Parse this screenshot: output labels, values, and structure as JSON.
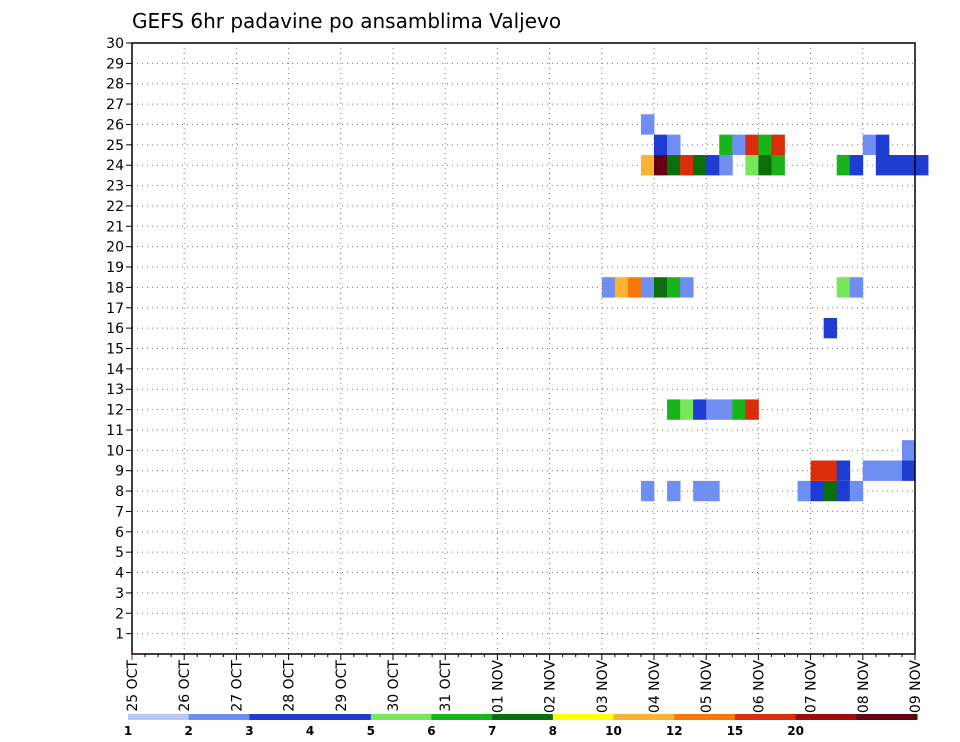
{
  "chart_data": {
    "type": "heatmap",
    "title": "GEFS 6hr padavine po ansamblima Valjevo",
    "y_range": [
      0,
      30
    ],
    "y_ticks": [
      1,
      2,
      3,
      4,
      5,
      6,
      7,
      8,
      9,
      10,
      11,
      12,
      13,
      14,
      15,
      16,
      17,
      18,
      19,
      20,
      21,
      22,
      23,
      24,
      25,
      26,
      27,
      28,
      29,
      30
    ],
    "x_ticks": [
      "25 OCT",
      "26 OCT",
      "27 OCT",
      "28 OCT",
      "29 OCT",
      "30 OCT",
      "31 OCT",
      "01 NOV",
      "02 NOV",
      "03 NOV",
      "04 NOV",
      "05 NOV",
      "06 NOV",
      "07 NOV",
      "08 NOV",
      "09 NOV"
    ],
    "x_unit": "6-hour steps",
    "grid": "dotted",
    "legend": {
      "position": "bottom",
      "labels": [
        "1",
        "2",
        "3",
        "4",
        "5",
        "6",
        "7",
        "8",
        "10",
        "12",
        "15",
        "20"
      ],
      "colors": [
        "#b4c6fa",
        "#6e8ef2",
        "#1e3cd2",
        "#1e3cd2",
        "#78e65a",
        "#19b419",
        "#0a6e0a",
        "#ffff00",
        "#fab432",
        "#fa780a",
        "#dc2d0a",
        "#a00a0a",
        "#640014"
      ]
    },
    "cells": [
      {
        "member": 8,
        "step": 39,
        "level": 1
      },
      {
        "member": 8,
        "step": 41,
        "level": 1
      },
      {
        "member": 8,
        "step": 43,
        "level": 1
      },
      {
        "member": 8,
        "step": 44,
        "level": 1
      },
      {
        "member": 8,
        "step": 51,
        "level": 1
      },
      {
        "member": 8,
        "step": 52,
        "level": 2
      },
      {
        "member": 8,
        "step": 53,
        "level": 6
      },
      {
        "member": 8,
        "step": 54,
        "level": 2
      },
      {
        "member": 8,
        "step": 55,
        "level": 1
      },
      {
        "member": 9,
        "step": 52,
        "level": 10
      },
      {
        "member": 9,
        "step": 53,
        "level": 10
      },
      {
        "member": 9,
        "step": 54,
        "level": 3
      },
      {
        "member": 9,
        "step": 56,
        "level": 1
      },
      {
        "member": 9,
        "step": 57,
        "level": 1
      },
      {
        "member": 9,
        "step": 58,
        "level": 1
      },
      {
        "member": 9,
        "step": 59,
        "level": 3
      },
      {
        "member": 10,
        "step": 59,
        "level": 1
      },
      {
        "member": 12,
        "step": 41,
        "level": 5
      },
      {
        "member": 12,
        "step": 42,
        "level": 4
      },
      {
        "member": 12,
        "step": 43,
        "level": 2
      },
      {
        "member": 12,
        "step": 44,
        "level": 1
      },
      {
        "member": 12,
        "step": 45,
        "level": 1
      },
      {
        "member": 12,
        "step": 46,
        "level": 5
      },
      {
        "member": 12,
        "step": 47,
        "level": 10
      },
      {
        "member": 16,
        "step": 53,
        "level": 2
      },
      {
        "member": 18,
        "step": 36,
        "level": 1
      },
      {
        "member": 18,
        "step": 37,
        "level": 8
      },
      {
        "member": 18,
        "step": 38,
        "level": 9
      },
      {
        "member": 18,
        "step": 39,
        "level": 1
      },
      {
        "member": 18,
        "step": 40,
        "level": 6
      },
      {
        "member": 18,
        "step": 41,
        "level": 5
      },
      {
        "member": 18,
        "step": 42,
        "level": 1
      },
      {
        "member": 18,
        "step": 54,
        "level": 4
      },
      {
        "member": 18,
        "step": 55,
        "level": 1
      },
      {
        "member": 24,
        "step": 39,
        "level": 8
      },
      {
        "member": 24,
        "step": 40,
        "level": 12
      },
      {
        "member": 24,
        "step": 41,
        "level": 6
      },
      {
        "member": 24,
        "step": 42,
        "level": 10
      },
      {
        "member": 24,
        "step": 43,
        "level": 6
      },
      {
        "member": 24,
        "step": 44,
        "level": 3
      },
      {
        "member": 24,
        "step": 45,
        "level": 1
      },
      {
        "member": 24,
        "step": 47,
        "level": 4
      },
      {
        "member": 24,
        "step": 48,
        "level": 6
      },
      {
        "member": 24,
        "step": 49,
        "level": 5
      },
      {
        "member": 24,
        "step": 54,
        "level": 5
      },
      {
        "member": 24,
        "step": 55,
        "level": 2
      },
      {
        "member": 24,
        "step": 57,
        "level": 2
      },
      {
        "member": 24,
        "step": 58,
        "level": 2
      },
      {
        "member": 24,
        "step": 59,
        "level": 2
      },
      {
        "member": 24,
        "step": 60,
        "level": 2
      },
      {
        "member": 25,
        "step": 40,
        "level": 2
      },
      {
        "member": 25,
        "step": 41,
        "level": 1
      },
      {
        "member": 25,
        "step": 45,
        "level": 5
      },
      {
        "member": 25,
        "step": 46,
        "level": 1
      },
      {
        "member": 25,
        "step": 47,
        "level": 10
      },
      {
        "member": 25,
        "step": 48,
        "level": 5
      },
      {
        "member": 25,
        "step": 49,
        "level": 10
      },
      {
        "member": 25,
        "step": 56,
        "level": 1
      },
      {
        "member": 25,
        "step": 57,
        "level": 2
      },
      {
        "member": 26,
        "step": 39,
        "level": 1
      }
    ]
  }
}
